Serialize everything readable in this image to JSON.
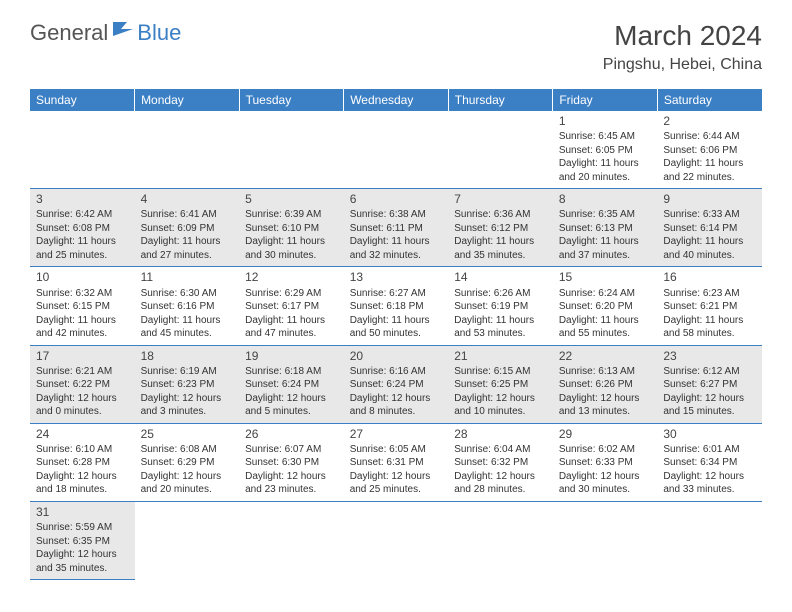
{
  "logo": {
    "text1": "General",
    "text2": "Blue"
  },
  "title": "March 2024",
  "location": "Pingshu, Hebei, China",
  "colors": {
    "header_bg": "#3b7fc4",
    "row_odd": "#e8e8e8",
    "row_even": "#ffffff",
    "border": "#3b7fc4"
  },
  "weekdays": [
    "Sunday",
    "Monday",
    "Tuesday",
    "Wednesday",
    "Thursday",
    "Friday",
    "Saturday"
  ],
  "weeks": [
    [
      null,
      null,
      null,
      null,
      null,
      {
        "d": "1",
        "sr": "Sunrise: 6:45 AM",
        "ss": "Sunset: 6:05 PM",
        "dl1": "Daylight: 11 hours",
        "dl2": "and 20 minutes."
      },
      {
        "d": "2",
        "sr": "Sunrise: 6:44 AM",
        "ss": "Sunset: 6:06 PM",
        "dl1": "Daylight: 11 hours",
        "dl2": "and 22 minutes."
      }
    ],
    [
      {
        "d": "3",
        "sr": "Sunrise: 6:42 AM",
        "ss": "Sunset: 6:08 PM",
        "dl1": "Daylight: 11 hours",
        "dl2": "and 25 minutes."
      },
      {
        "d": "4",
        "sr": "Sunrise: 6:41 AM",
        "ss": "Sunset: 6:09 PM",
        "dl1": "Daylight: 11 hours",
        "dl2": "and 27 minutes."
      },
      {
        "d": "5",
        "sr": "Sunrise: 6:39 AM",
        "ss": "Sunset: 6:10 PM",
        "dl1": "Daylight: 11 hours",
        "dl2": "and 30 minutes."
      },
      {
        "d": "6",
        "sr": "Sunrise: 6:38 AM",
        "ss": "Sunset: 6:11 PM",
        "dl1": "Daylight: 11 hours",
        "dl2": "and 32 minutes."
      },
      {
        "d": "7",
        "sr": "Sunrise: 6:36 AM",
        "ss": "Sunset: 6:12 PM",
        "dl1": "Daylight: 11 hours",
        "dl2": "and 35 minutes."
      },
      {
        "d": "8",
        "sr": "Sunrise: 6:35 AM",
        "ss": "Sunset: 6:13 PM",
        "dl1": "Daylight: 11 hours",
        "dl2": "and 37 minutes."
      },
      {
        "d": "9",
        "sr": "Sunrise: 6:33 AM",
        "ss": "Sunset: 6:14 PM",
        "dl1": "Daylight: 11 hours",
        "dl2": "and 40 minutes."
      }
    ],
    [
      {
        "d": "10",
        "sr": "Sunrise: 6:32 AM",
        "ss": "Sunset: 6:15 PM",
        "dl1": "Daylight: 11 hours",
        "dl2": "and 42 minutes."
      },
      {
        "d": "11",
        "sr": "Sunrise: 6:30 AM",
        "ss": "Sunset: 6:16 PM",
        "dl1": "Daylight: 11 hours",
        "dl2": "and 45 minutes."
      },
      {
        "d": "12",
        "sr": "Sunrise: 6:29 AM",
        "ss": "Sunset: 6:17 PM",
        "dl1": "Daylight: 11 hours",
        "dl2": "and 47 minutes."
      },
      {
        "d": "13",
        "sr": "Sunrise: 6:27 AM",
        "ss": "Sunset: 6:18 PM",
        "dl1": "Daylight: 11 hours",
        "dl2": "and 50 minutes."
      },
      {
        "d": "14",
        "sr": "Sunrise: 6:26 AM",
        "ss": "Sunset: 6:19 PM",
        "dl1": "Daylight: 11 hours",
        "dl2": "and 53 minutes."
      },
      {
        "d": "15",
        "sr": "Sunrise: 6:24 AM",
        "ss": "Sunset: 6:20 PM",
        "dl1": "Daylight: 11 hours",
        "dl2": "and 55 minutes."
      },
      {
        "d": "16",
        "sr": "Sunrise: 6:23 AM",
        "ss": "Sunset: 6:21 PM",
        "dl1": "Daylight: 11 hours",
        "dl2": "and 58 minutes."
      }
    ],
    [
      {
        "d": "17",
        "sr": "Sunrise: 6:21 AM",
        "ss": "Sunset: 6:22 PM",
        "dl1": "Daylight: 12 hours",
        "dl2": "and 0 minutes."
      },
      {
        "d": "18",
        "sr": "Sunrise: 6:19 AM",
        "ss": "Sunset: 6:23 PM",
        "dl1": "Daylight: 12 hours",
        "dl2": "and 3 minutes."
      },
      {
        "d": "19",
        "sr": "Sunrise: 6:18 AM",
        "ss": "Sunset: 6:24 PM",
        "dl1": "Daylight: 12 hours",
        "dl2": "and 5 minutes."
      },
      {
        "d": "20",
        "sr": "Sunrise: 6:16 AM",
        "ss": "Sunset: 6:24 PM",
        "dl1": "Daylight: 12 hours",
        "dl2": "and 8 minutes."
      },
      {
        "d": "21",
        "sr": "Sunrise: 6:15 AM",
        "ss": "Sunset: 6:25 PM",
        "dl1": "Daylight: 12 hours",
        "dl2": "and 10 minutes."
      },
      {
        "d": "22",
        "sr": "Sunrise: 6:13 AM",
        "ss": "Sunset: 6:26 PM",
        "dl1": "Daylight: 12 hours",
        "dl2": "and 13 minutes."
      },
      {
        "d": "23",
        "sr": "Sunrise: 6:12 AM",
        "ss": "Sunset: 6:27 PM",
        "dl1": "Daylight: 12 hours",
        "dl2": "and 15 minutes."
      }
    ],
    [
      {
        "d": "24",
        "sr": "Sunrise: 6:10 AM",
        "ss": "Sunset: 6:28 PM",
        "dl1": "Daylight: 12 hours",
        "dl2": "and 18 minutes."
      },
      {
        "d": "25",
        "sr": "Sunrise: 6:08 AM",
        "ss": "Sunset: 6:29 PM",
        "dl1": "Daylight: 12 hours",
        "dl2": "and 20 minutes."
      },
      {
        "d": "26",
        "sr": "Sunrise: 6:07 AM",
        "ss": "Sunset: 6:30 PM",
        "dl1": "Daylight: 12 hours",
        "dl2": "and 23 minutes."
      },
      {
        "d": "27",
        "sr": "Sunrise: 6:05 AM",
        "ss": "Sunset: 6:31 PM",
        "dl1": "Daylight: 12 hours",
        "dl2": "and 25 minutes."
      },
      {
        "d": "28",
        "sr": "Sunrise: 6:04 AM",
        "ss": "Sunset: 6:32 PM",
        "dl1": "Daylight: 12 hours",
        "dl2": "and 28 minutes."
      },
      {
        "d": "29",
        "sr": "Sunrise: 6:02 AM",
        "ss": "Sunset: 6:33 PM",
        "dl1": "Daylight: 12 hours",
        "dl2": "and 30 minutes."
      },
      {
        "d": "30",
        "sr": "Sunrise: 6:01 AM",
        "ss": "Sunset: 6:34 PM",
        "dl1": "Daylight: 12 hours",
        "dl2": "and 33 minutes."
      }
    ],
    [
      {
        "d": "31",
        "sr": "Sunrise: 5:59 AM",
        "ss": "Sunset: 6:35 PM",
        "dl1": "Daylight: 12 hours",
        "dl2": "and 35 minutes."
      },
      null,
      null,
      null,
      null,
      null,
      null
    ]
  ]
}
